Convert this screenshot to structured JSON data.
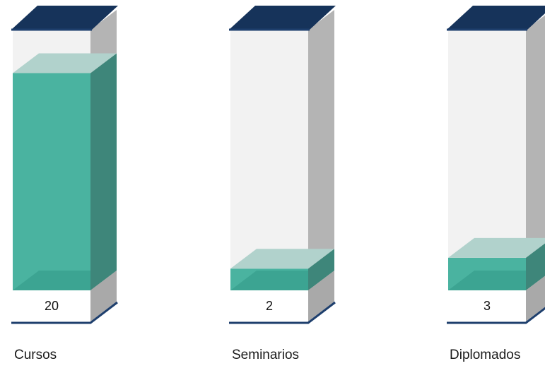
{
  "chart_data": {
    "type": "bar",
    "style": "3d-tube",
    "categories": [
      "Cursos",
      "Seminarios",
      "Diplomados"
    ],
    "values": [
      20,
      2,
      3
    ],
    "ylim": [
      0,
      24
    ],
    "grid": false,
    "legend": "none",
    "colors": {
      "cap": "#16335a",
      "cap_edge": "#1e3f6d",
      "tube_front": "#f2f2f2",
      "tube_side": "#b4b4b4",
      "fill_front": "#4ab3a0",
      "fill_side": "#3e867a",
      "fill_top": "#b1d2cc",
      "fill_bottom": "#3aa18f",
      "base_front": "#ffffff",
      "base_side": "#a9a9a9",
      "base_line": "#1e3f6d"
    }
  }
}
